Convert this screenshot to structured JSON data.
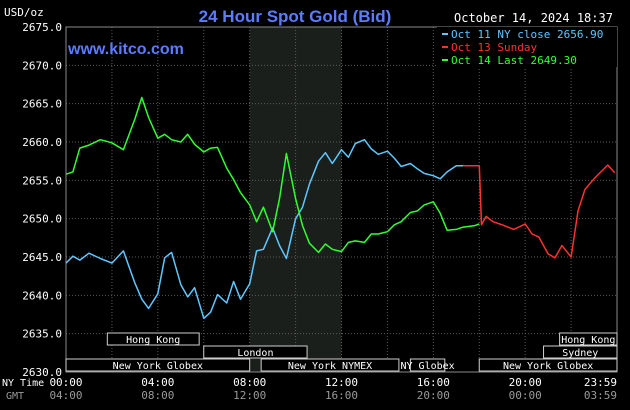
{
  "chart_data": {
    "type": "line",
    "title": "24 Hour Spot Gold (Bid)",
    "watermark": "www.kitco.com",
    "timestamp": "October 14, 2024 18:37",
    "ylabel": "USD/oz",
    "ylim": [
      2630,
      2675
    ],
    "yticks": [
      "2675.0",
      "2670.0",
      "2665.0",
      "2660.0",
      "2655.0",
      "2650.0",
      "2645.0",
      "2640.0",
      "2635.0",
      "2630.0"
    ],
    "xlim": [
      0,
      24
    ],
    "xticks_ny": [
      "00:00",
      "04:00",
      "08:00",
      "12:00",
      "16:00",
      "20:00",
      "23:59"
    ],
    "xticks_gmt": [
      "04:00",
      "08:00",
      "12:00",
      "16:00",
      "20:00",
      "00:00",
      "03:59"
    ],
    "ny_time_label": "NY Time",
    "gmt_label": "GMT",
    "shaded_region": [
      8,
      12
    ],
    "legend_position": "top-right",
    "colors": {
      "background": "#000000",
      "grid": "#5a5a5a",
      "shade": "#1a1f1c",
      "title": "#5c7cff",
      "oct11": "#5fc7ff",
      "oct13": "#ff3030",
      "oct14": "#30ff30",
      "legend_text": "#ffffff",
      "axis_text": "#ffffff",
      "session_bar": "#000000"
    },
    "series": [
      {
        "name": "Oct 11 NY close 2656.90",
        "color": "#5fc7ff",
        "x": [
          0.0,
          0.3,
          0.6,
          1.0,
          1.5,
          2.0,
          2.5,
          3.0,
          3.3,
          3.6,
          4.0,
          4.3,
          4.6,
          5.0,
          5.3,
          5.6,
          6.0,
          6.3,
          6.6,
          7.0,
          7.3,
          7.6,
          8.0,
          8.3,
          8.6,
          9.0,
          9.3,
          9.6,
          10.0,
          10.3,
          10.6,
          11.0,
          11.3,
          11.6,
          12.0,
          12.3,
          12.6,
          13.0,
          13.3,
          13.6,
          14.0,
          14.3,
          14.6,
          15.0,
          15.3,
          15.6,
          16.0,
          16.3,
          16.6,
          17.0,
          17.3
        ],
        "y": [
          2644.2,
          2645.1,
          2644.6,
          2645.5,
          2644.8,
          2644.2,
          2645.8,
          2641.6,
          2639.5,
          2638.3,
          2640.2,
          2644.9,
          2645.6,
          2641.4,
          2639.8,
          2641.0,
          2637.0,
          2637.8,
          2640.1,
          2639.0,
          2641.8,
          2639.5,
          2641.5,
          2645.8,
          2646.0,
          2648.8,
          2646.5,
          2644.8,
          2650.0,
          2651.5,
          2654.5,
          2657.5,
          2658.6,
          2657.2,
          2659.0,
          2658.0,
          2659.8,
          2660.3,
          2659.1,
          2658.4,
          2658.8,
          2657.9,
          2656.8,
          2657.2,
          2656.5,
          2655.9,
          2655.6,
          2655.2,
          2656.1,
          2656.9,
          2656.9
        ]
      },
      {
        "name": "Oct 13 Sunday",
        "color": "#ff3030",
        "x": [
          17.3,
          17.8,
          18.0,
          18.1,
          18.3,
          18.6,
          19.0,
          19.5,
          20.0,
          20.3,
          20.6,
          21.0,
          21.3,
          21.6,
          22.0,
          22.3,
          22.6,
          23.0,
          23.3,
          23.6,
          23.9
        ],
        "y": [
          2656.9,
          2656.9,
          2656.9,
          2649.2,
          2650.3,
          2649.6,
          2649.2,
          2648.6,
          2649.3,
          2648.0,
          2647.6,
          2645.4,
          2644.9,
          2646.5,
          2645.0,
          2651.0,
          2653.8,
          2655.2,
          2656.1,
          2657.0,
          2656.0
        ]
      },
      {
        "name": "Oct 14 Last 2649.30",
        "color": "#30ff30",
        "x": [
          0.0,
          0.3,
          0.6,
          1.0,
          1.5,
          2.0,
          2.5,
          3.0,
          3.3,
          3.6,
          4.0,
          4.3,
          4.6,
          5.0,
          5.3,
          5.6,
          6.0,
          6.3,
          6.6,
          7.0,
          7.3,
          7.6,
          8.0,
          8.3,
          8.6,
          9.0,
          9.3,
          9.6,
          10.0,
          10.3,
          10.6,
          11.0,
          11.3,
          11.6,
          12.0,
          12.3,
          12.6,
          13.0,
          13.3,
          13.6,
          14.0,
          14.3,
          14.6,
          15.0,
          15.3,
          15.6,
          16.0,
          16.3,
          16.6,
          17.0,
          17.3,
          17.8,
          18.0
        ],
        "y": [
          2655.8,
          2656.1,
          2659.2,
          2659.6,
          2660.3,
          2659.9,
          2659.0,
          2663.0,
          2665.8,
          2663.2,
          2660.5,
          2661.0,
          2660.3,
          2660.0,
          2661.0,
          2659.7,
          2658.7,
          2659.2,
          2659.3,
          2656.6,
          2655.1,
          2653.4,
          2651.8,
          2649.6,
          2651.5,
          2648.3,
          2652.6,
          2658.5,
          2652.6,
          2649.1,
          2646.8,
          2645.6,
          2646.7,
          2646.0,
          2645.7,
          2646.9,
          2647.1,
          2646.9,
          2648.0,
          2648.0,
          2648.3,
          2649.2,
          2649.6,
          2650.8,
          2651.0,
          2651.8,
          2652.2,
          2650.7,
          2648.5,
          2648.6,
          2648.9,
          2649.1,
          2649.3
        ]
      }
    ],
    "sessions": [
      {
        "label": "Hong Kong",
        "start": 1.8,
        "end": 5.8,
        "row": 0
      },
      {
        "label": "London",
        "start": 6.0,
        "end": 10.5,
        "row": 1
      },
      {
        "label": "New York Globex",
        "start": 0.0,
        "end": 8.0,
        "row": 2
      },
      {
        "label": "New York NYMEX",
        "start": 8.5,
        "end": 14.5,
        "row": 2
      },
      {
        "label": "NY Globex",
        "start": 15.0,
        "end": 16.5,
        "row": 2
      },
      {
        "label": "Hong Kong",
        "start": 21.5,
        "end": 24.0,
        "row": 0
      },
      {
        "label": "Sydney",
        "start": 20.8,
        "end": 24.0,
        "row": 1
      },
      {
        "label": "New York Globex",
        "start": 18.0,
        "end": 24.0,
        "row": 2
      }
    ]
  }
}
